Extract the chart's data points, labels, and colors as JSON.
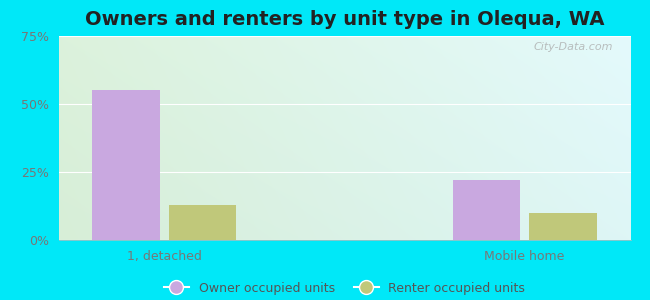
{
  "title": "Owners and renters by unit type in Olequa, WA",
  "categories": [
    "1, detached",
    "Mobile home"
  ],
  "owner_values": [
    55.0,
    22.0
  ],
  "renter_values": [
    13.0,
    10.0
  ],
  "owner_color": "#c9a8e0",
  "renter_color": "#c0c87a",
  "owner_label": "Owner occupied units",
  "renter_label": "Renter occupied units",
  "ylim": [
    0,
    75
  ],
  "yticks": [
    0,
    25,
    50,
    75
  ],
  "yticklabels": [
    "0%",
    "25%",
    "50%",
    "75%"
  ],
  "background_outer": "#00e8f8",
  "watermark": "City-Data.com",
  "title_fontsize": 14,
  "bar_width": 0.32,
  "x_positions": [
    0.5,
    2.2
  ]
}
